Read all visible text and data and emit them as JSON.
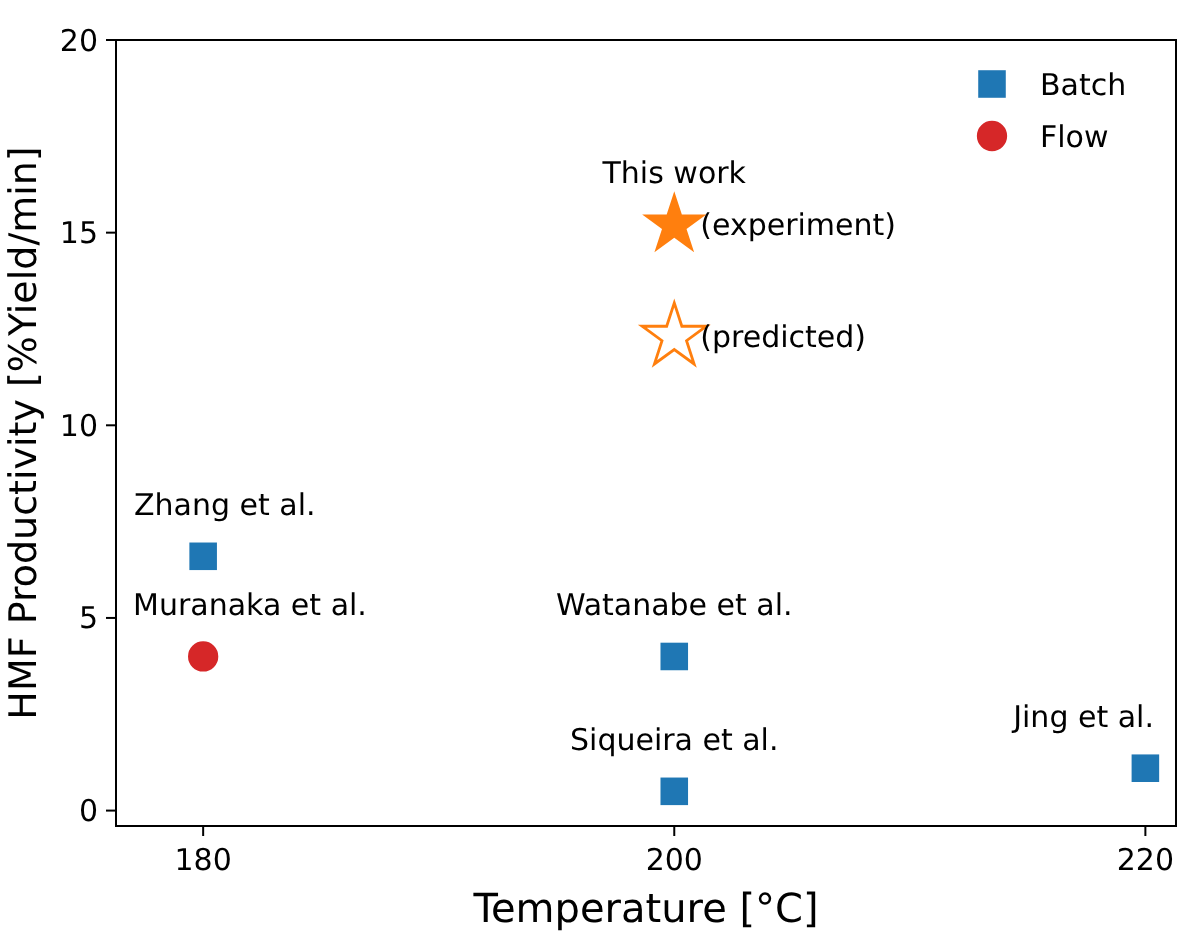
{
  "chart_data": {
    "type": "scatter",
    "xlabel": "Temperature [°C]",
    "ylabel": "HMF Productivity [%Yield/min]",
    "xlim": [
      176.3,
      221.3
    ],
    "xticks": [
      180,
      200,
      220
    ],
    "ylim": [
      -0.4,
      20
    ],
    "yticks": [
      0,
      5,
      10,
      15,
      20
    ],
    "legend": "top right",
    "grid": false,
    "series": [
      {
        "name": "Batch",
        "color": "#1f77b4",
        "marker": "square",
        "x": [
          180,
          200,
          200,
          220
        ],
        "values": [
          6.6,
          4.0,
          0.5,
          1.1
        ]
      },
      {
        "name": "Flow",
        "color": "#d62728",
        "marker": "circle",
        "x": [
          180
        ],
        "values": [
          4.0
        ]
      },
      {
        "name": "(experiment)",
        "color": "#ff7f0e",
        "marker": "star",
        "x": [
          200
        ],
        "values": [
          15.2
        ]
      },
      {
        "name": "(predicted)",
        "color": "#ff7f0e",
        "marker": "star",
        "x": [
          200
        ],
        "values": [
          12.3
        ]
      }
    ],
    "annotations": [
      {
        "text": "This work",
        "x": 200,
        "y": 15.2
      },
      {
        "text": "Zhang et al.",
        "x": 180,
        "y": 6.6
      },
      {
        "text": "Muranaka et al.",
        "x": 180,
        "y": 4.0
      },
      {
        "text": "Watanabe et al.",
        "x": 200,
        "y": 4.0
      },
      {
        "text": "Siqueira et al.",
        "x": 200,
        "y": 0.5
      },
      {
        "text": "Jing et al.",
        "x": 220,
        "y": 1.1
      }
    ]
  }
}
